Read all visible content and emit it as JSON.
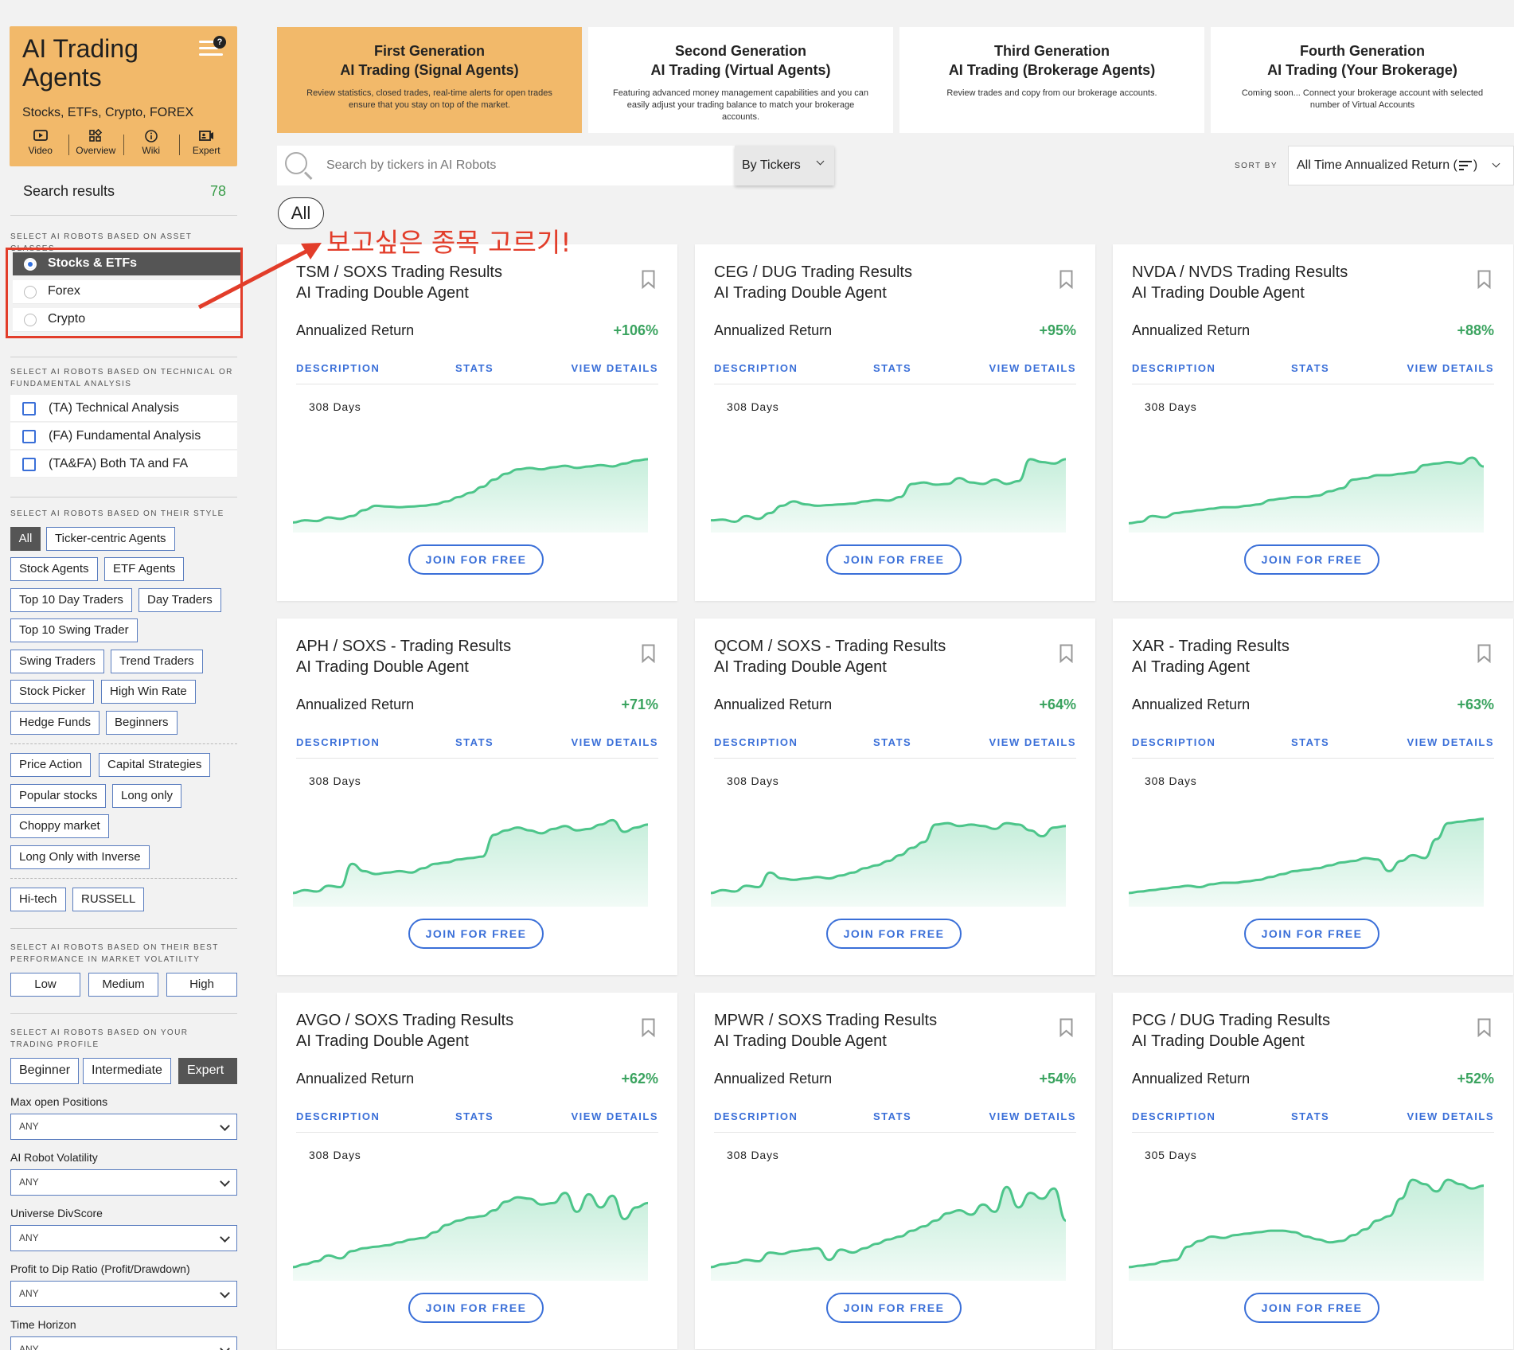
{
  "brand": {
    "title": "AI Trading Agents",
    "subtitle": "Stocks, ETFs, Crypto, FOREX",
    "nav": [
      {
        "label": "Video",
        "icon": "video-icon"
      },
      {
        "label": "Overview",
        "icon": "overview-icon"
      },
      {
        "label": "Wiki",
        "icon": "info-icon"
      },
      {
        "label": "Expert",
        "icon": "expert-icon"
      }
    ]
  },
  "search_results": {
    "label": "Search results",
    "count": "78"
  },
  "asset_classes": {
    "label": "SELECT AI ROBOTS BASED ON ASSET CLASSES",
    "options": [
      {
        "label": "Stocks & ETFs",
        "selected": true
      },
      {
        "label": "Forex",
        "selected": false
      },
      {
        "label": "Crypto",
        "selected": false
      }
    ]
  },
  "analysis": {
    "label": "SELECT AI ROBOTS BASED ON TECHNICAL OR FUNDAMENTAL ANALYSIS",
    "options": [
      "(TA) Technical Analysis",
      "(FA) Fundamental Analysis",
      "(TA&FA) Both TA and FA"
    ]
  },
  "style": {
    "label": "SELECT AI ROBOTS BASED ON THEIR STYLE",
    "tags": [
      "All",
      "Ticker-centric Agents",
      "Stock Agents",
      "ETF Agents",
      "Top 10 Day Traders",
      "Day Traders",
      "Top 10 Swing Trader",
      "Swing Traders",
      "Trend Traders",
      "Stock Picker",
      "High Win Rate",
      "Hedge Funds",
      "Beginners",
      "Price Action",
      "Capital Strategies",
      "Popular stocks",
      "Long only",
      "Choppy market",
      "Long Only with Inverse",
      "Hi-tech",
      "RUSSELL"
    ]
  },
  "volatility": {
    "label": "SELECT AI ROBOTS BASED ON THEIR BEST PERFORMANCE IN MARKET VOLATILITY",
    "options": [
      "Low",
      "Medium",
      "High"
    ]
  },
  "profile": {
    "label": "SELECT AI ROBOTS BASED ON YOUR TRADING PROFILE",
    "options": [
      "Beginner",
      "Intermediate",
      "Expert"
    ],
    "active": "Expert"
  },
  "filters": [
    {
      "label": "Max open Positions",
      "value": "ANY"
    },
    {
      "label": "AI Robot Volatility",
      "value": "ANY"
    },
    {
      "label": "Universe DivScore",
      "value": "ANY"
    },
    {
      "label": "Profit to Dip Ratio (Profit/Drawdown)",
      "value": "ANY"
    },
    {
      "label": "Time Horizon",
      "value": "ANY"
    }
  ],
  "generations": [
    {
      "title1": "First Generation",
      "title2": "AI Trading (Signal Agents)",
      "desc": "Review statistics, closed trades, real-time alerts for open trades ensure that you stay on top of the market.",
      "active": true
    },
    {
      "title1": "Second Generation",
      "title2": "AI Trading (Virtual Agents)",
      "desc": "Featuring advanced money management capabilities and you can easily adjust your trading balance to match your brokerage accounts.",
      "active": false
    },
    {
      "title1": "Third Generation",
      "title2": "AI Trading (Brokerage Agents)",
      "desc": "Review trades and copy from our brokerage accounts.",
      "active": false
    },
    {
      "title1": "Fourth Generation",
      "title2": "AI Trading (Your Brokerage)",
      "desc": "Coming soon... Connect your brokerage account with selected number of Virtual Accounts",
      "active": false
    }
  ],
  "search": {
    "placeholder": "Search by tickers in AI Robots",
    "mode": "By Tickers"
  },
  "sort": {
    "label": "SORT BY",
    "prefix": "All Time Annualized Return (",
    "suffix": ")"
  },
  "filter_pill": "All",
  "annotation": "보고싶은 종목 고르기!",
  "card_labels": {
    "annualized": "Annualized Return",
    "description": "DESCRIPTION",
    "stats": "STATS",
    "details": "VIEW DETAILS",
    "join": "JOIN FOR FREE"
  },
  "cards": [
    {
      "title1": "TSM / SOXS Trading Results",
      "title2": "AI Trading Double Agent",
      "ret": "+106%",
      "days": "308 Days",
      "curve": [
        5,
        8,
        7,
        12,
        10,
        14,
        22,
        28,
        27,
        26,
        27,
        28,
        30,
        34,
        40,
        46,
        54,
        64,
        72,
        78,
        80,
        78,
        81,
        83,
        80,
        82,
        84,
        82,
        86,
        90,
        92
      ]
    },
    {
      "title1": "CEG / DUG Trading Results",
      "title2": "AI Trading Double Agent",
      "ret": "+95%",
      "days": "308 Days",
      "curve": [
        8,
        9,
        6,
        14,
        10,
        18,
        28,
        34,
        30,
        28,
        29,
        30,
        31,
        34,
        36,
        35,
        40,
        58,
        60,
        57,
        58,
        66,
        60,
        58,
        64,
        58,
        62,
        92,
        88,
        86,
        92
      ]
    },
    {
      "title1": "NVDA / NVDS Trading Results",
      "title2": "AI Trading Double Agent",
      "ret": "+88%",
      "days": "308 Days",
      "curve": [
        4,
        6,
        14,
        12,
        18,
        20,
        22,
        24,
        26,
        26,
        28,
        30,
        36,
        38,
        40,
        40,
        42,
        48,
        52,
        64,
        66,
        70,
        70,
        72,
        74,
        84,
        86,
        88,
        86,
        94,
        82
      ]
    },
    {
      "title1": "APH / SOXS - Trading Results",
      "title2": "AI Trading Double Agent",
      "ret": "+71%",
      "days": "308 Days",
      "curve": [
        10,
        14,
        12,
        20,
        18,
        50,
        40,
        36,
        38,
        40,
        38,
        44,
        50,
        52,
        56,
        58,
        60,
        90,
        96,
        100,
        96,
        92,
        98,
        102,
        96,
        98,
        104,
        110,
        94,
        100,
        104
      ]
    },
    {
      "title1": "QCOM / SOXS - Trading Results",
      "title2": "AI Trading Double Agent",
      "ret": "+64%",
      "days": "308 Days",
      "curve": [
        10,
        14,
        12,
        20,
        18,
        38,
        30,
        28,
        30,
        32,
        30,
        34,
        38,
        44,
        48,
        54,
        62,
        72,
        80,
        104,
        106,
        102,
        104,
        102,
        98,
        106,
        104,
        96,
        88,
        100,
        102
      ]
    },
    {
      "title1": "XAR - Trading Results",
      "title2": "AI Trading Agent",
      "ret": "+63%",
      "days": "308 Days",
      "curve": [
        10,
        12,
        14,
        16,
        18,
        20,
        18,
        22,
        24,
        24,
        26,
        28,
        32,
        36,
        40,
        42,
        44,
        48,
        52,
        54,
        58,
        56,
        40,
        54,
        62,
        58,
        84,
        106,
        108,
        110,
        112
      ]
    },
    {
      "title1": "AVGO / SOXS Trading Results",
      "title2": "AI Trading Double Agent",
      "ret": "+62%",
      "days": "308 Days",
      "curve": [
        10,
        14,
        18,
        26,
        22,
        32,
        36,
        38,
        40,
        44,
        48,
        50,
        58,
        68,
        74,
        78,
        80,
        88,
        100,
        106,
        104,
        96,
        98,
        112,
        86,
        110,
        92,
        108,
        76,
        92,
        98
      ]
    },
    {
      "title1": "MPWR / SOXS Trading Results",
      "title2": "AI Trading Double Agent",
      "ret": "+54%",
      "days": "308 Days",
      "curve": [
        10,
        14,
        16,
        20,
        18,
        30,
        28,
        32,
        34,
        36,
        20,
        34,
        30,
        36,
        42,
        48,
        52,
        60,
        66,
        74,
        84,
        88,
        82,
        96,
        86,
        120,
        92,
        112,
        104,
        118,
        74
      ]
    },
    {
      "title1": "PCG / DUG Trading Results",
      "title2": "AI Trading Double Agent",
      "ret": "+52%",
      "days": "305 Days",
      "curve": [
        10,
        12,
        14,
        18,
        20,
        38,
        46,
        52,
        50,
        54,
        56,
        58,
        60,
        60,
        58,
        52,
        48,
        44,
        46,
        54,
        62,
        74,
        80,
        104,
        130,
        124,
        114,
        130,
        124,
        118,
        122
      ]
    }
  ]
}
